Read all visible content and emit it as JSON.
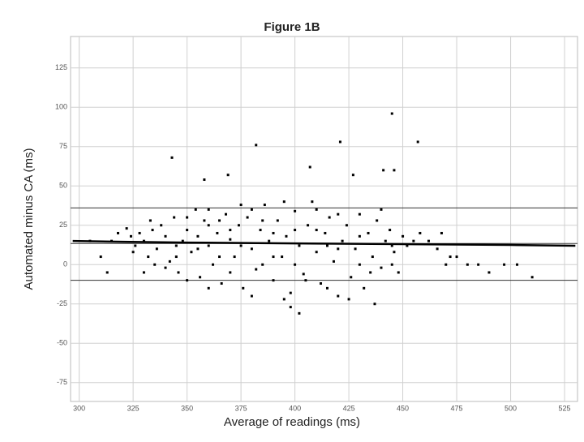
{
  "chart_data": {
    "type": "scatter",
    "title": "Figure 1B",
    "x_label": "Average of readings (ms)",
    "y_label": "Automated minus CA (ms)",
    "x": [
      322,
      324,
      326,
      328,
      330,
      332,
      334,
      336,
      338,
      340,
      342,
      344,
      346,
      348,
      350,
      352,
      354,
      356,
      358,
      360,
      362,
      364,
      366,
      368,
      370,
      372,
      374,
      376,
      378,
      380,
      382,
      384,
      386,
      388,
      390,
      392,
      394,
      396,
      398,
      400,
      402,
      404,
      406,
      408,
      410,
      412,
      414,
      416,
      418,
      420,
      422,
      424,
      426,
      428,
      430,
      432,
      434,
      436,
      438,
      440,
      442,
      444,
      446,
      448,
      450,
      452,
      455,
      458,
      462,
      466,
      470,
      472,
      340,
      345,
      350,
      355,
      360,
      365,
      370,
      375,
      380,
      385,
      390,
      395,
      400,
      405,
      410,
      415,
      420,
      425,
      430,
      435,
      445,
      335,
      330,
      360,
      380,
      395,
      410,
      375,
      350,
      365,
      385,
      420,
      440,
      360,
      370,
      390,
      400,
      415,
      430,
      445,
      355,
      345,
      325,
      333,
      310,
      315,
      318,
      305,
      313,
      343,
      382,
      445,
      421,
      457,
      446,
      441,
      407,
      427,
      369,
      358,
      437,
      402,
      398,
      480,
      485,
      490,
      497,
      503,
      510,
      475,
      468
    ],
    "y": [
      23,
      18,
      12,
      20,
      15,
      5,
      22,
      10,
      25,
      18,
      2,
      30,
      -5,
      15,
      22,
      8,
      35,
      -8,
      28,
      12,
      0,
      20,
      -12,
      32,
      16,
      5,
      25,
      -15,
      30,
      10,
      -3,
      22,
      38,
      15,
      -10,
      28,
      5,
      18,
      -18,
      34,
      12,
      -6,
      25,
      40,
      8,
      -12,
      20,
      30,
      2,
      -20,
      15,
      25,
      -8,
      10,
      32,
      -15,
      20,
      5,
      28,
      -2,
      15,
      22,
      8,
      -5,
      18,
      12,
      15,
      20,
      15,
      10,
      0,
      5,
      -2,
      5,
      -10,
      10,
      -15,
      5,
      -5,
      12,
      -20,
      0,
      5,
      -22,
      0,
      -10,
      22,
      -15,
      10,
      -22,
      0,
      -5,
      0,
      0,
      -5,
      35,
      35,
      40,
      35,
      38,
      30,
      28,
      28,
      32,
      35,
      25,
      22,
      20,
      22,
      12,
      18,
      12,
      18,
      12,
      8,
      28,
      5,
      15,
      20,
      15,
      -5,
      68,
      76,
      96,
      78,
      78,
      60,
      60,
      62,
      57,
      57,
      54,
      -25,
      -31,
      -27,
      0,
      0,
      -5,
      0,
      0,
      -8,
      5,
      20
    ],
    "color": "#000000",
    "xlim": [
      296,
      531
    ],
    "ylim": [
      -87,
      145
    ],
    "xticks": [
      300,
      325,
      350,
      375,
      400,
      425,
      450,
      475,
      500,
      525
    ],
    "yticks": [
      125,
      100,
      75,
      50,
      25,
      0,
      -25,
      -50,
      -75
    ],
    "grid": true,
    "hlines": [
      {
        "value": 36,
        "color": "#333333"
      },
      {
        "value": 13.4,
        "color": "#333333"
      },
      {
        "value": -10,
        "color": "#333333"
      }
    ],
    "smooth": {
      "x": [
        297,
        320,
        350,
        400,
        450,
        500,
        530
      ],
      "y": [
        15,
        14.5,
        14,
        13.5,
        13,
        12.5,
        12
      ],
      "color": "#000000"
    }
  }
}
